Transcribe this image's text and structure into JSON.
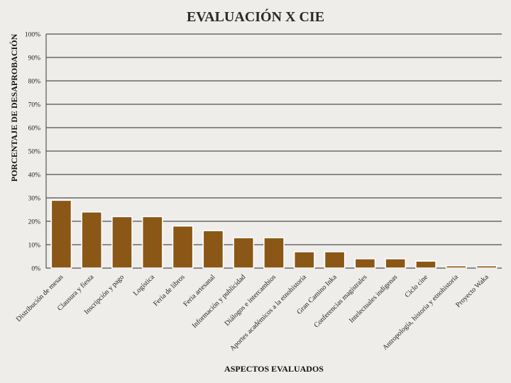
{
  "chart_data": {
    "type": "bar",
    "title": "EVALUACIÓN X CIE",
    "xlabel": "ASPECTOS EVALUADOS",
    "ylabel": "PORCENTAJE DE DESAPROBACIÓN",
    "ylim": [
      0,
      100
    ],
    "ytick_step": 10,
    "ytick_suffix": "%",
    "grid": true,
    "bar_color": "#8b5716",
    "categories": [
      "Distribución de mesas",
      "Clausura y fiesta",
      "Inscripción y pago",
      "Logística",
      "Feria de libros",
      "Feria artesanal",
      "Información y publicidad",
      "Diálogos e intercambios",
      "Aportes académicos a la etnohistoria",
      "Gran Camino Inka",
      "Conferencias magistrales",
      "Intelectuales indígenas",
      "Ciclo cine",
      "Antropología, historia y etnohistoria",
      "Proyecto Waka"
    ],
    "values": [
      29,
      24,
      22,
      22,
      18,
      16,
      13,
      13,
      7,
      7,
      4,
      4,
      3,
      1,
      1
    ]
  }
}
